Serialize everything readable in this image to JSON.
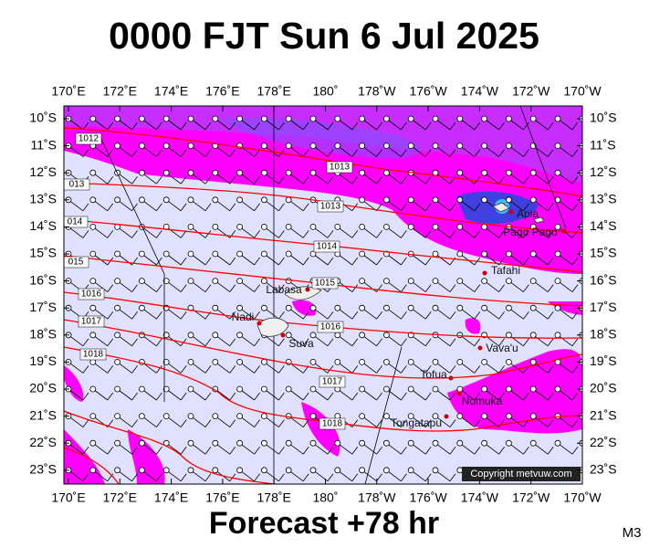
{
  "header": {
    "title": "0000 FJT Sun 6 Jul 2025"
  },
  "map": {
    "lon_labels": [
      "170˚E",
      "172˚E",
      "174˚E",
      "176˚E",
      "178˚E",
      "180˚",
      "178˚W",
      "176˚W",
      "174˚W",
      "172˚W",
      "170˚W"
    ],
    "lat_labels": [
      "10˚S",
      "11˚S",
      "12˚S",
      "13˚S",
      "14˚S",
      "15˚S",
      "16˚S",
      "17˚S",
      "18˚S",
      "19˚S",
      "20˚S",
      "21˚S",
      "22˚S",
      "23˚S"
    ],
    "isobar_labels": [
      "1012",
      "1013",
      "013",
      "014",
      "015",
      "1016",
      "1017",
      "1018",
      "1013",
      "1014",
      "1015",
      "1016",
      "1017",
      "1018"
    ],
    "places": [
      "Labasa",
      "Nadi",
      "Suva",
      "Apia",
      "Pago Pago",
      "Tafahi",
      "Vava'u",
      "Tofua",
      "Nomuka",
      "Tongatapu"
    ],
    "copyright": "Copyright metvuw.com"
  },
  "footer": {
    "forecast": "Forecast +78 hr",
    "code": "M3"
  }
}
